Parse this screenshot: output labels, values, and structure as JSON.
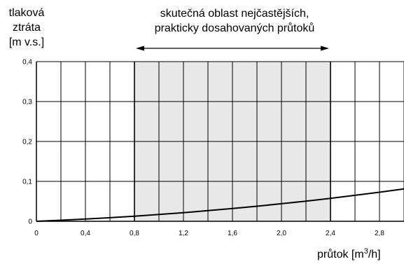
{
  "chart_data": {
    "type": "line",
    "ylabel_lines": [
      "tlaková",
      "ztráta",
      "[m v.s.]"
    ],
    "xlabel": "průtok [m",
    "xlabel_sup": "3",
    "xlabel_end": "/h]",
    "annotation_lines": [
      "skutečná oblast nejčastějších,",
      "prakticky dosahovaných průtoků"
    ],
    "highlight_range": [
      0.8,
      2.4
    ],
    "xlim": [
      0,
      3.0
    ],
    "ylim": [
      0,
      0.4
    ],
    "x_ticks": [
      "0",
      "0,4",
      "0,8",
      "1,2",
      "1,6",
      "2,0",
      "2,4",
      "2,8"
    ],
    "y_ticks": [
      "0",
      "0,1",
      "0,2",
      "0,3",
      "0,4"
    ],
    "grid": true,
    "series": [
      {
        "x": [
          0,
          0.2,
          0.4,
          0.6,
          0.8,
          1.0,
          1.2,
          1.4,
          1.6,
          1.8,
          2.0,
          2.2,
          2.4,
          2.6,
          2.8,
          3.0
        ],
        "y": [
          0,
          0.0026,
          0.0056,
          0.009,
          0.0128,
          0.017,
          0.0216,
          0.0266,
          0.032,
          0.0378,
          0.044,
          0.0506,
          0.0576,
          0.065,
          0.0728,
          0.081
        ]
      }
    ]
  }
}
